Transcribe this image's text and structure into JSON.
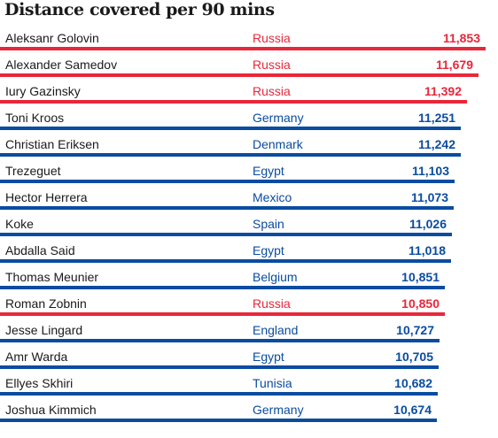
{
  "title": "Distance covered per 90 mins",
  "colors": {
    "russia": "#e8273a",
    "other": "#0a4ca0"
  },
  "chart_data": {
    "type": "bar",
    "title": "Distance covered per 90 mins",
    "xlabel": "",
    "ylabel": "",
    "xlim": [
      0,
      11853
    ],
    "grid": false,
    "rows": [
      {
        "name": "Aleksanr Golovin",
        "country": "Russia",
        "value": 11853,
        "label": "11,853",
        "highlight": true
      },
      {
        "name": "Alexander Samedov",
        "country": "Russia",
        "value": 11679,
        "label": "11,679",
        "highlight": true
      },
      {
        "name": "Iury Gazinsky",
        "country": "Russia",
        "value": 11392,
        "label": "11,392",
        "highlight": true
      },
      {
        "name": "Toni Kroos",
        "country": "Germany",
        "value": 11251,
        "label": "11,251",
        "highlight": false
      },
      {
        "name": "Christian Eriksen",
        "country": "Denmark",
        "value": 11242,
        "label": "11,242",
        "highlight": false
      },
      {
        "name": "Trezeguet",
        "country": "Egypt",
        "value": 11103,
        "label": "11,103",
        "highlight": false
      },
      {
        "name": "Hector Herrera",
        "country": "Mexico",
        "value": 11073,
        "label": "11,073",
        "highlight": false
      },
      {
        "name": "Koke",
        "country": "Spain",
        "value": 11026,
        "label": "11,026",
        "highlight": false
      },
      {
        "name": "Abdalla Said",
        "country": "Egypt",
        "value": 11018,
        "label": "11,018",
        "highlight": false
      },
      {
        "name": "Thomas Meunier",
        "country": "Belgium",
        "value": 10851,
        "label": "10,851",
        "highlight": false
      },
      {
        "name": "Roman Zobnin",
        "country": "Russia",
        "value": 10850,
        "label": "10,850",
        "highlight": true
      },
      {
        "name": "Jesse Lingard",
        "country": "England",
        "value": 10727,
        "label": "10,727",
        "highlight": false
      },
      {
        "name": "Amr Warda",
        "country": "Egypt",
        "value": 10705,
        "label": "10,705",
        "highlight": false
      },
      {
        "name": "Ellyes Skhiri",
        "country": "Tunisia",
        "value": 10682,
        "label": "10,682",
        "highlight": false
      },
      {
        "name": "Joshua Kimmich",
        "country": "Germany",
        "value": 10674,
        "label": "10,674",
        "highlight": false
      }
    ]
  }
}
